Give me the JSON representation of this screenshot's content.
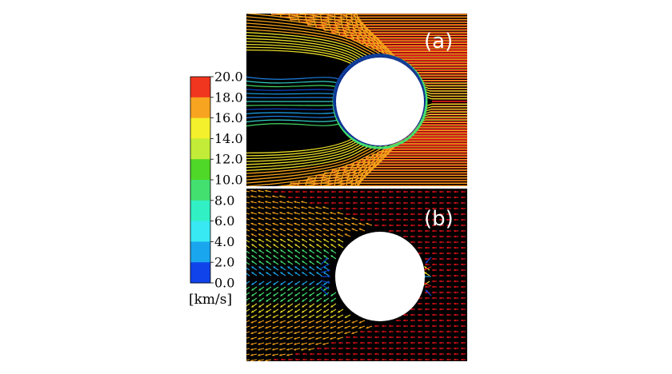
{
  "panels": [
    {
      "label": "(a)",
      "style": "streamlines"
    },
    {
      "label": "(b)",
      "style": "velocity-vectors"
    }
  ],
  "colorbar": {
    "unit": "[km/s]",
    "ticks": [
      "20.0",
      "18.0",
      "16.0",
      "14.0",
      "12.0",
      "10.0",
      "8.0",
      "6.0",
      "4.0",
      "2.0",
      "0.0"
    ],
    "colors": [
      "#f0361e",
      "#f7a421",
      "#f4f02c",
      "#c2ec38",
      "#4fd827",
      "#43e070",
      "#31f0c4",
      "#38e9f3",
      "#1aa6ee",
      "#1044ea"
    ]
  },
  "colors": {
    "background": "#000000",
    "fast": "#e8121c",
    "sheath": "#f5a21a",
    "flank": "#e6d927",
    "wake": "#0d4fd6",
    "obstacle": "#ffffff"
  }
}
